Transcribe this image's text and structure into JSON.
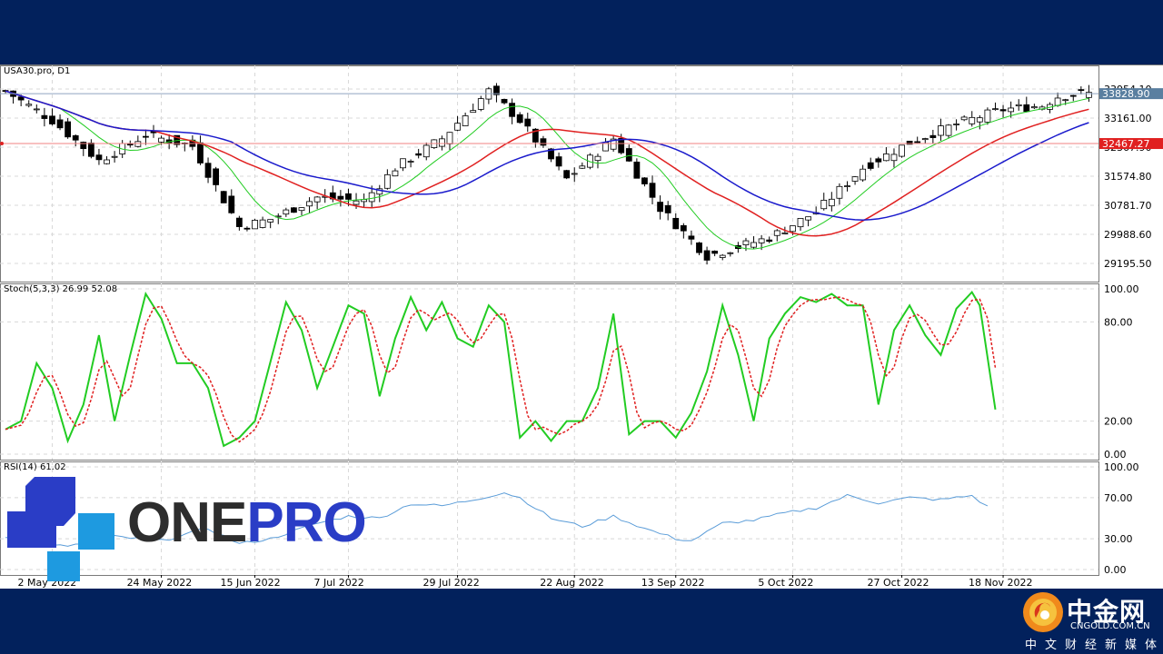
{
  "chart_data": [
    {
      "type": "candlestick",
      "label": "USA30.pro, D1",
      "ylim": [
        28700,
        34600
      ],
      "y_ticks": [
        "33954.10",
        "33161.00",
        "32367.90",
        "31574.80",
        "30781.70",
        "29988.60",
        "29195.50"
      ],
      "x_labels": [
        "2 May 2022",
        "24 May 2022",
        "15 Jun 2022",
        "7 Jul 2022",
        "29 Jul 2022",
        "22 Aug 2022",
        "13 Sep 2022",
        "5 Oct 2022",
        "27 Oct 2022",
        "18 Nov 2022"
      ],
      "current_price": "33828.90",
      "level_price": "32467.27",
      "close_anchors": [
        [
          0,
          33900
        ],
        [
          6,
          33100
        ],
        [
          12,
          32000
        ],
        [
          18,
          32700
        ],
        [
          24,
          32400
        ],
        [
          30,
          30200
        ],
        [
          34,
          30400
        ],
        [
          40,
          31000
        ],
        [
          46,
          30900
        ],
        [
          50,
          31800
        ],
        [
          56,
          32600
        ],
        [
          62,
          33900
        ],
        [
          66,
          33100
        ],
        [
          72,
          31500
        ],
        [
          78,
          32600
        ],
        [
          84,
          30700
        ],
        [
          90,
          29400
        ],
        [
          98,
          29900
        ],
        [
          104,
          30600
        ],
        [
          110,
          31800
        ],
        [
          116,
          32500
        ],
        [
          122,
          33000
        ],
        [
          128,
          33400
        ],
        [
          133,
          33500
        ],
        [
          135,
          33750
        ],
        [
          138,
          33830
        ]
      ],
      "ma_colors": [
        "#22cc22",
        "#e02020",
        "#1a1acc"
      ],
      "ma_periods": [
        8,
        20,
        30
      ]
    },
    {
      "type": "line",
      "label": "Stoch(5,3,3) 26.99 52.08",
      "ylim": [
        0,
        100
      ],
      "y_ticks": [
        "100.00",
        "80.00",
        "20.00",
        "0.00"
      ],
      "main_anchors": [
        [
          0,
          15
        ],
        [
          2,
          20
        ],
        [
          4,
          55
        ],
        [
          6,
          40
        ],
        [
          8,
          8
        ],
        [
          10,
          30
        ],
        [
          12,
          72
        ],
        [
          14,
          20
        ],
        [
          16,
          60
        ],
        [
          18,
          97
        ],
        [
          20,
          82
        ],
        [
          22,
          55
        ],
        [
          24,
          55
        ],
        [
          26,
          40
        ],
        [
          28,
          5
        ],
        [
          30,
          10
        ],
        [
          32,
          20
        ],
        [
          36,
          92
        ],
        [
          38,
          75
        ],
        [
          40,
          40
        ],
        [
          44,
          90
        ],
        [
          46,
          85
        ],
        [
          48,
          35
        ],
        [
          50,
          70
        ],
        [
          52,
          95
        ],
        [
          54,
          75
        ],
        [
          56,
          92
        ],
        [
          58,
          70
        ],
        [
          60,
          65
        ],
        [
          62,
          90
        ],
        [
          64,
          80
        ],
        [
          66,
          10
        ],
        [
          68,
          20
        ],
        [
          70,
          8
        ],
        [
          72,
          20
        ],
        [
          74,
          20
        ],
        [
          76,
          40
        ],
        [
          78,
          85
        ],
        [
          80,
          12
        ],
        [
          82,
          20
        ],
        [
          84,
          20
        ],
        [
          86,
          10
        ],
        [
          88,
          25
        ],
        [
          90,
          50
        ],
        [
          92,
          90
        ],
        [
          94,
          60
        ],
        [
          96,
          20
        ],
        [
          98,
          70
        ],
        [
          100,
          85
        ],
        [
          102,
          95
        ],
        [
          104,
          92
        ],
        [
          106,
          97
        ],
        [
          108,
          90
        ],
        [
          110,
          90
        ],
        [
          112,
          30
        ],
        [
          114,
          75
        ],
        [
          116,
          90
        ],
        [
          118,
          72
        ],
        [
          120,
          60
        ],
        [
          122,
          88
        ],
        [
          124,
          98
        ],
        [
          125,
          90
        ],
        [
          127,
          27
        ]
      ],
      "signal_value": 52.08,
      "main_color": "#22cc22",
      "signal_color": "#e02020"
    },
    {
      "type": "line",
      "label": "RSI(14) 61.02",
      "ylim": [
        0,
        100
      ],
      "y_ticks": [
        "100.00",
        "70.00",
        "30.00",
        "0.00"
      ],
      "anchors": [
        [
          0,
          32
        ],
        [
          8,
          22
        ],
        [
          14,
          32
        ],
        [
          20,
          28
        ],
        [
          26,
          40
        ],
        [
          30,
          25
        ],
        [
          34,
          30
        ],
        [
          40,
          45
        ],
        [
          44,
          52
        ],
        [
          48,
          50
        ],
        [
          52,
          64
        ],
        [
          56,
          62
        ],
        [
          60,
          68
        ],
        [
          64,
          75
        ],
        [
          66,
          70
        ],
        [
          70,
          50
        ],
        [
          74,
          42
        ],
        [
          78,
          52
        ],
        [
          82,
          40
        ],
        [
          86,
          30
        ],
        [
          88,
          28
        ],
        [
          92,
          45
        ],
        [
          96,
          48
        ],
        [
          100,
          55
        ],
        [
          104,
          60
        ],
        [
          108,
          72
        ],
        [
          112,
          65
        ],
        [
          116,
          70
        ],
        [
          120,
          68
        ],
        [
          124,
          72
        ],
        [
          126,
          61
        ]
      ],
      "color": "#5a9cd8"
    }
  ],
  "logo": {
    "one": "ONE",
    "pro": "PRO"
  },
  "cngold": {
    "title": "中金网",
    "domain": "CNGOLD.COM.CN",
    "slogan": "中文财经新媒体"
  }
}
